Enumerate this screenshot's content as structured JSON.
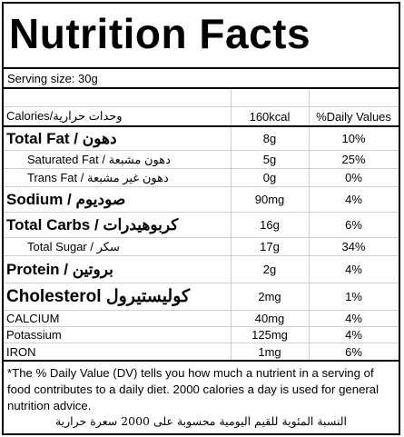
{
  "title": "Nutrition Facts",
  "serving": "Serving size:  30g",
  "header": {
    "calories": "Calories/وحدات حرارية",
    "kcal": "160kcal",
    "dv": "%Daily Values"
  },
  "rows": [
    {
      "label": "Total Fat / دهون",
      "value": "8g",
      "dv": "10%"
    },
    {
      "label": "Saturated Fat / دهون مشبعة",
      "value": "5g",
      "dv": "25%"
    },
    {
      "label": "Trans Fat / دهون غير مشبعة",
      "value": "0g",
      "dv": "0%"
    },
    {
      "label": "Sodium / صوديوم",
      "value": "90mg",
      "dv": "4%"
    },
    {
      "label": "Total Carbs / كربوهيدرات",
      "value": "16g",
      "dv": "6%"
    },
    {
      "label": "Total Sugar / سكر",
      "value": "17g",
      "dv": "34%"
    },
    {
      "label": "Protein / بروتين",
      "value": "2g",
      "dv": "4%"
    },
    {
      "label": "Cholesterol كوليستيرول",
      "value": "2mg",
      "dv": "1%"
    },
    {
      "label": "CALCIUM",
      "value": "40mg",
      "dv": "4%"
    },
    {
      "label": "Potassium",
      "value": "125mg",
      "dv": "4%"
    },
    {
      "label": "IRON",
      "value": "1mg",
      "dv": "6%"
    }
  ],
  "note": "*The % Daily Value (DV) tells you how much a nutrient in a serving of food contributes to a daily diet. 2000 calories a day is used for general nutrition advice.",
  "footer_ar": "النسبة المئوية للقيم اليومية محسوبة على 2000 سعرة حرارية"
}
